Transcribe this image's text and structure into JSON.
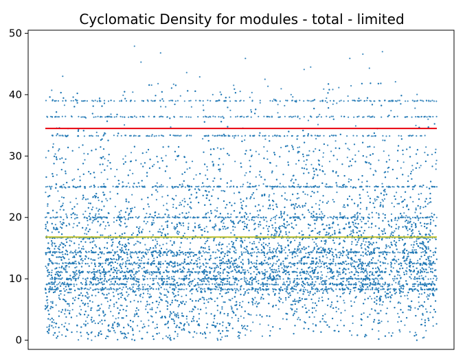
{
  "chart_data": {
    "type": "scatter",
    "title": "Cyclomatic Density for modules - total - limited",
    "xlabel": "",
    "ylabel": "",
    "ylim": [
      -1.5,
      50.5
    ],
    "yticks": [
      0,
      10,
      20,
      30,
      40,
      50
    ],
    "x_tick_labels_visible": false,
    "grid": false,
    "point_color": "#1f77b4",
    "series": [
      {
        "values_sample": [
          [
            0.02,
            12.9
          ],
          [
            0.03,
            15.6
          ],
          [
            0.05,
            39.0
          ],
          [
            0.08,
            43.0
          ],
          [
            0.12,
            36.5
          ],
          [
            0.15,
            8.4
          ],
          [
            0.18,
            25.0
          ],
          [
            0.21,
            5.2
          ],
          [
            0.25,
            38.9
          ],
          [
            0.28,
            20.0
          ],
          [
            0.32,
            14.1
          ],
          [
            0.35,
            33.3
          ],
          [
            0.38,
            2.6
          ],
          [
            0.41,
            47.9
          ],
          [
            0.44,
            45.3
          ],
          [
            0.47,
            39.1
          ],
          [
            0.5,
            28.6
          ],
          [
            0.53,
            46.8
          ],
          [
            0.56,
            11.2
          ],
          [
            0.59,
            41.7
          ],
          [
            0.62,
            22.4
          ],
          [
            0.65,
            43.6
          ],
          [
            0.68,
            0.5
          ],
          [
            0.71,
            42.9
          ],
          [
            0.74,
            36.4
          ],
          [
            0.77,
            40.0
          ],
          [
            0.8,
            17.9
          ],
          [
            0.83,
            33.3
          ],
          [
            0.86,
            6.8
          ],
          [
            0.89,
            19.3
          ],
          [
            0.92,
            45.9
          ],
          [
            0.95,
            30.1
          ],
          [
            0.98,
            9.7
          ],
          [
            1.01,
            42.5
          ],
          [
            1.04,
            25.0
          ],
          [
            1.07,
            15.8
          ],
          [
            1.1,
            38.2
          ],
          [
            1.13,
            40.0
          ],
          [
            1.16,
            3.4
          ],
          [
            1.19,
            44.1
          ],
          [
            1.22,
            44.5
          ],
          [
            1.25,
            33.3
          ],
          [
            1.28,
            40.9
          ],
          [
            1.31,
            12.3
          ],
          [
            1.34,
            38.6
          ],
          [
            1.37,
            21.7
          ],
          [
            1.4,
            45.9
          ],
          [
            1.43,
            7.1
          ],
          [
            1.46,
            46.6
          ],
          [
            1.49,
            44.3
          ],
          [
            1.52,
            27.5
          ],
          [
            1.55,
            47.0
          ],
          [
            1.58,
            1.2
          ],
          [
            1.61,
            42.1
          ],
          [
            1.64,
            16.7
          ],
          [
            1.67,
            33.3
          ],
          [
            1.7,
            37.8
          ],
          [
            1.73,
            10.5
          ],
          [
            1.76,
            36.0
          ],
          [
            1.79,
            25.0
          ]
        ]
      }
    ],
    "horizontal_lines": [
      {
        "y": 34.5,
        "color": "#e8000b"
      },
      {
        "y": 16.8,
        "color": "#bcbd22"
      }
    ],
    "banded_values": [
      39.0,
      36.4,
      33.3,
      25.0,
      20.0,
      16.7,
      14.3,
      12.5,
      11.1,
      10.0,
      9.1,
      8.3
    ]
  }
}
